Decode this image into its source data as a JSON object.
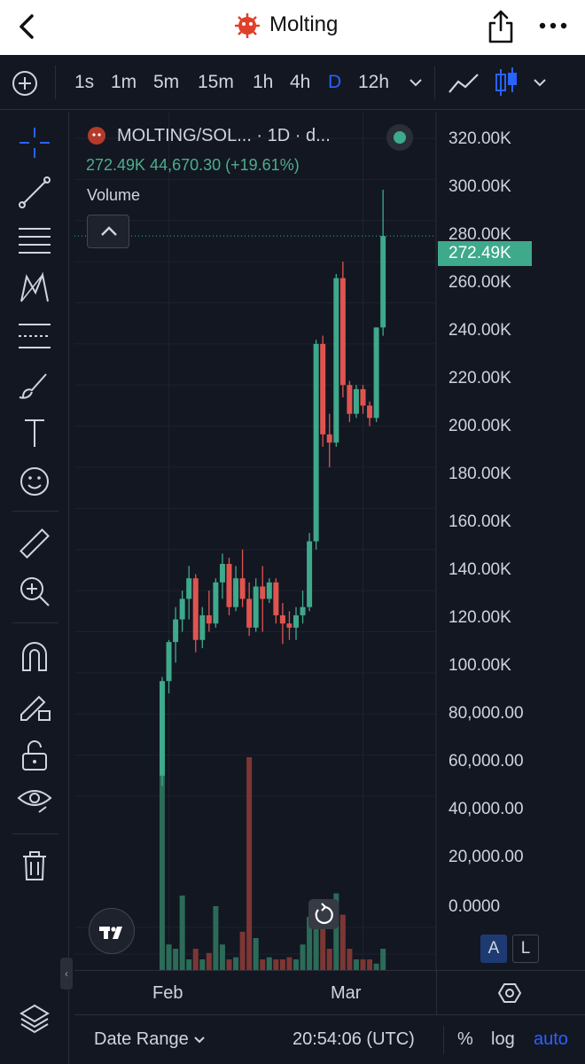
{
  "header": {
    "title": "Molting",
    "back_icon": "chevron-left-icon",
    "share_icon": "share-icon",
    "more_icon": "more-horizontal-icon"
  },
  "timeframes": {
    "items": [
      "1s",
      "1m",
      "5m",
      "15m",
      "1h",
      "4h",
      "D",
      "12h"
    ],
    "active": "D"
  },
  "legend": {
    "pair": "MOLTING/SOL... · 1D · d...",
    "ohlc": "272.49K  44,670.30 (+19.61%)",
    "volume_label": "Volume"
  },
  "price_axis": {
    "labels": [
      "320.00K",
      "300.00K",
      "280.00K",
      "260.00K",
      "240.00K",
      "220.00K",
      "200.00K",
      "180.00K",
      "160.00K",
      "140.00K",
      "120.00K",
      "100.00K",
      "80,000.00",
      "60,000.00",
      "40,000.00",
      "20,000.00",
      "0.0000"
    ],
    "current_price": "272.49K"
  },
  "time_axis": {
    "labels": [
      "Feb",
      "Mar"
    ]
  },
  "scale_buttons": {
    "auto_scale": "A",
    "log_scale": "L"
  },
  "bottom_bar": {
    "date_range": "Date Range",
    "clock": "20:54:06 (UTC)",
    "percent": "%",
    "log": "log",
    "auto": "auto"
  },
  "colors": {
    "up": "#3ea98b",
    "down": "#e0544f",
    "accent": "#2962ff",
    "background": "#131722"
  },
  "chart_data": {
    "type": "candlestick",
    "y_range": [
      0,
      330000
    ],
    "current_price": 272490,
    "candles": [
      {
        "o": 10000,
        "h": 58000,
        "l": 5000,
        "c": 56000
      },
      {
        "o": 56000,
        "h": 76000,
        "l": 50000,
        "c": 75000
      },
      {
        "o": 75000,
        "h": 92000,
        "l": 65000,
        "c": 86000
      },
      {
        "o": 86000,
        "h": 100000,
        "l": 80000,
        "c": 96000
      },
      {
        "o": 96000,
        "h": 112000,
        "l": 86000,
        "c": 106000
      },
      {
        "o": 106000,
        "h": 108000,
        "l": 70000,
        "c": 76000
      },
      {
        "o": 76000,
        "h": 92000,
        "l": 72000,
        "c": 88000
      },
      {
        "o": 88000,
        "h": 100000,
        "l": 80000,
        "c": 84000
      },
      {
        "o": 84000,
        "h": 106000,
        "l": 82000,
        "c": 104000
      },
      {
        "o": 104000,
        "h": 118000,
        "l": 96000,
        "c": 113000
      },
      {
        "o": 113000,
        "h": 116000,
        "l": 88000,
        "c": 92000
      },
      {
        "o": 92000,
        "h": 112000,
        "l": 90000,
        "c": 106000
      },
      {
        "o": 106000,
        "h": 120000,
        "l": 92000,
        "c": 96000
      },
      {
        "o": 96000,
        "h": 104000,
        "l": 78000,
        "c": 82000
      },
      {
        "o": 82000,
        "h": 106000,
        "l": 80000,
        "c": 102000
      },
      {
        "o": 102000,
        "h": 112000,
        "l": 80000,
        "c": 96000
      },
      {
        "o": 96000,
        "h": 106000,
        "l": 94000,
        "c": 104000
      },
      {
        "o": 104000,
        "h": 106000,
        "l": 84000,
        "c": 88000
      },
      {
        "o": 88000,
        "h": 94000,
        "l": 74000,
        "c": 84000
      },
      {
        "o": 84000,
        "h": 90000,
        "l": 76000,
        "c": 82000
      },
      {
        "o": 82000,
        "h": 92000,
        "l": 76000,
        "c": 88000
      },
      {
        "o": 88000,
        "h": 100000,
        "l": 84000,
        "c": 92000
      },
      {
        "o": 92000,
        "h": 128000,
        "l": 90000,
        "c": 124000
      },
      {
        "o": 124000,
        "h": 222000,
        "l": 120000,
        "c": 220000
      },
      {
        "o": 220000,
        "h": 224000,
        "l": 170000,
        "c": 176000
      },
      {
        "o": 176000,
        "h": 186000,
        "l": 160000,
        "c": 172000
      },
      {
        "o": 172000,
        "h": 254000,
        "l": 170000,
        "c": 252000
      },
      {
        "o": 252000,
        "h": 260000,
        "l": 194000,
        "c": 200000
      },
      {
        "o": 200000,
        "h": 202000,
        "l": 182000,
        "c": 186000
      },
      {
        "o": 186000,
        "h": 200000,
        "l": 184000,
        "c": 198000
      },
      {
        "o": 198000,
        "h": 200000,
        "l": 186000,
        "c": 190000
      },
      {
        "o": 190000,
        "h": 192000,
        "l": 180000,
        "c": 184000
      },
      {
        "o": 184000,
        "h": 228000,
        "l": 182000,
        "c": 228000
      },
      {
        "o": 228000,
        "h": 295000,
        "l": 224000,
        "c": 272490
      }
    ],
    "volumes": [
      0.92,
      0.12,
      0.1,
      0.35,
      0.05,
      0.1,
      0.05,
      0.08,
      0.3,
      0.12,
      0.05,
      0.06,
      0.18,
      1.0,
      0.15,
      0.05,
      0.06,
      0.05,
      0.05,
      0.06,
      0.05,
      0.12,
      0.25,
      0.22,
      0.26,
      0.1,
      0.36,
      0.26,
      0.1,
      0.05,
      0.05,
      0.05,
      0.03,
      0.1
    ],
    "x_labels": [
      {
        "label": "Feb",
        "index": 1
      },
      {
        "label": "Mar",
        "index": 30
      }
    ]
  }
}
